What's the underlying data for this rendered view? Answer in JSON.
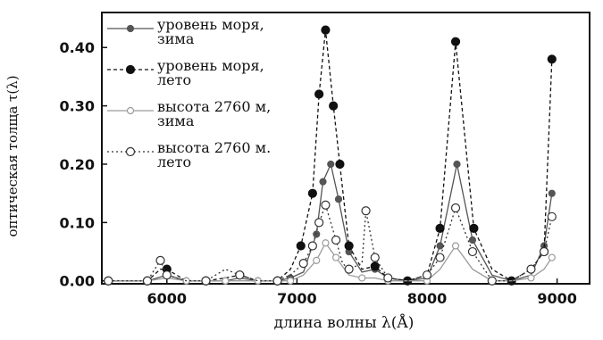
{
  "chart_data": {
    "type": "line",
    "title": "",
    "xlabel": "длина волны λ(Å)",
    "ylabel": "оптическая толща τ(λ)",
    "xlim": [
      5500,
      9250
    ],
    "ylim": [
      -0.005,
      0.46
    ],
    "xticks": [
      6000,
      7000,
      8000,
      9000
    ],
    "yticks": [
      0.0,
      0.1,
      0.2,
      0.3,
      0.4
    ],
    "ytick_labels": [
      "0.00",
      "0.10",
      "0.20",
      "0.30",
      "0.40"
    ],
    "grid": false,
    "legend_position": "top-left",
    "series": [
      {
        "name": "уровень моря,\nзима",
        "color": "#555555",
        "dash": "",
        "marker": "filled-small",
        "x": [
          5550,
          5700,
          5850,
          6000,
          6150,
          6300,
          6450,
          6560,
          6700,
          6850,
          6950,
          7050,
          7150,
          7200,
          7260,
          7320,
          7400,
          7500,
          7600,
          7700,
          7850,
          8000,
          8100,
          8230,
          8350,
          8500,
          8650,
          8800,
          8900,
          8960
        ],
        "y": [
          0.0,
          0.0,
          0.0,
          0.01,
          0.0,
          0.0,
          0.0,
          0.005,
          0.0,
          0.0,
          0.005,
          0.015,
          0.08,
          0.17,
          0.2,
          0.14,
          0.05,
          0.015,
          0.02,
          0.005,
          0.0,
          0.005,
          0.06,
          0.2,
          0.07,
          0.01,
          0.0,
          0.01,
          0.06,
          0.15
        ]
      },
      {
        "name": "уровень моря,\nлето",
        "color": "#111111",
        "dash": "4,3",
        "marker": "filled",
        "x": [
          5550,
          5700,
          5850,
          5950,
          6000,
          6150,
          6300,
          6450,
          6560,
          6700,
          6850,
          6950,
          7030,
          7120,
          7170,
          7220,
          7280,
          7330,
          7400,
          7500,
          7600,
          7700,
          7850,
          8000,
          8100,
          8220,
          8360,
          8500,
          8650,
          8800,
          8900,
          8960
        ],
        "y": [
          0.0,
          0.0,
          0.0,
          0.02,
          0.02,
          0.0,
          0.0,
          0.005,
          0.01,
          0.0,
          0.0,
          0.02,
          0.06,
          0.15,
          0.32,
          0.43,
          0.3,
          0.2,
          0.06,
          0.02,
          0.025,
          0.005,
          0.0,
          0.01,
          0.09,
          0.41,
          0.09,
          0.02,
          0.0,
          0.02,
          0.05,
          0.38
        ]
      },
      {
        "name": "высота 2760 м,\nзима",
        "color": "#9a9a9a",
        "dash": "",
        "marker": "open-small",
        "x": [
          5550,
          5700,
          5850,
          6000,
          6150,
          6300,
          6450,
          6560,
          6700,
          6850,
          6950,
          7050,
          7150,
          7220,
          7300,
          7400,
          7500,
          7600,
          7700,
          7850,
          8000,
          8100,
          8220,
          8350,
          8500,
          8650,
          8800,
          8900,
          8960
        ],
        "y": [
          0.0,
          0.0,
          0.0,
          0.005,
          0.0,
          0.0,
          0.0,
          0.0,
          0.0,
          0.0,
          0.0,
          0.01,
          0.035,
          0.065,
          0.04,
          0.01,
          0.005,
          0.005,
          0.0,
          0.0,
          0.0,
          0.02,
          0.06,
          0.02,
          0.0,
          0.0,
          0.005,
          0.02,
          0.04
        ]
      },
      {
        "name": "высота 2760 м.\nлето",
        "color": "#333333",
        "dash": "2,3",
        "marker": "open",
        "x": [
          5550,
          5700,
          5850,
          5950,
          6000,
          6150,
          6300,
          6450,
          6560,
          6700,
          6850,
          6950,
          7050,
          7120,
          7170,
          7220,
          7300,
          7350,
          7400,
          7500,
          7530,
          7600,
          7700,
          7850,
          8000,
          8100,
          8220,
          8350,
          8500,
          8650,
          8800,
          8900,
          8960
        ],
        "y": [
          0.0,
          0.0,
          0.0,
          0.035,
          0.01,
          0.0,
          0.0,
          0.02,
          0.01,
          0.0,
          0.0,
          0.01,
          0.03,
          0.06,
          0.1,
          0.13,
          0.07,
          0.03,
          0.02,
          0.03,
          0.12,
          0.04,
          0.005,
          0.0,
          0.01,
          0.04,
          0.125,
          0.05,
          0.0,
          0.0,
          0.02,
          0.05,
          0.11
        ]
      }
    ]
  }
}
